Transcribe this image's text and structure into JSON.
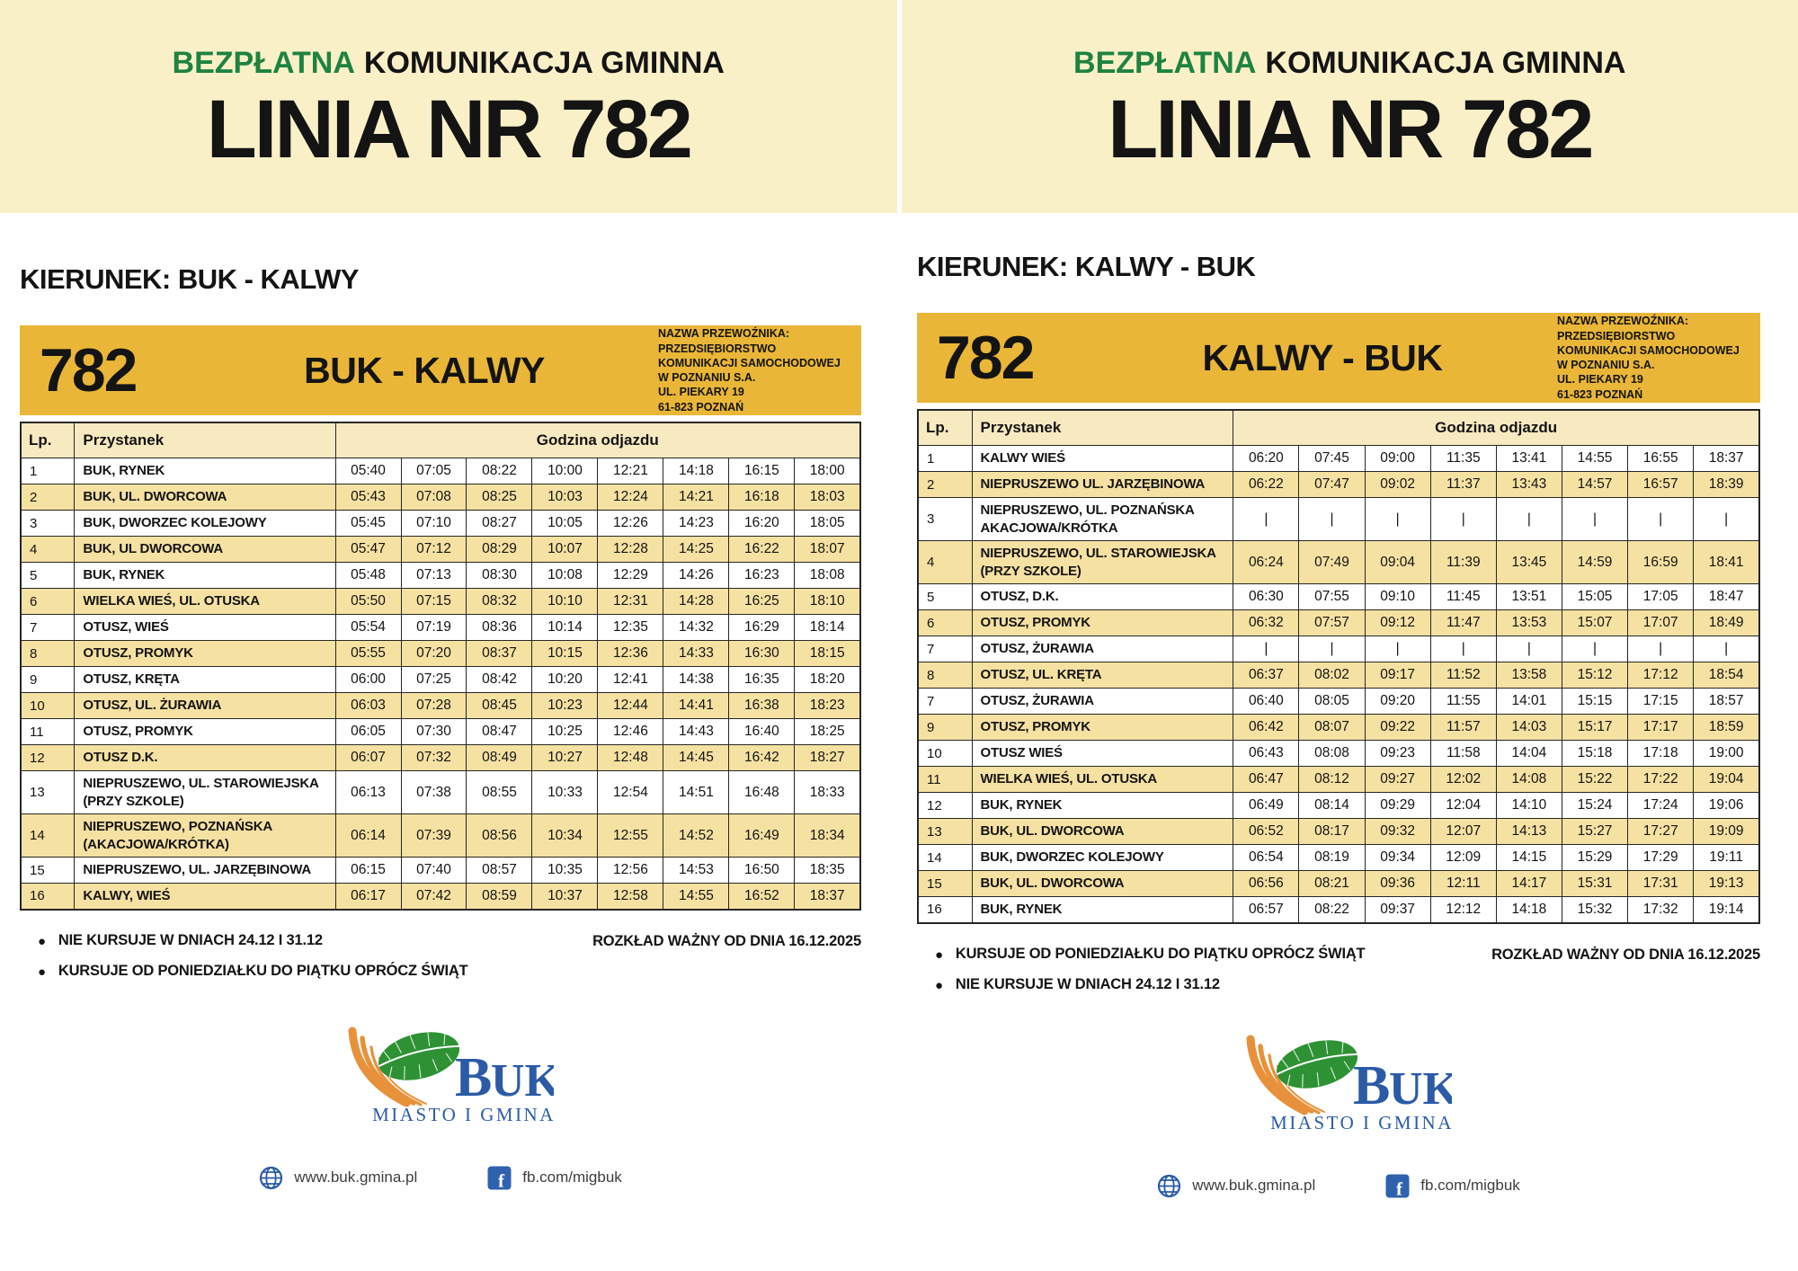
{
  "banner": {
    "free_label": "BEZPŁATNA",
    "rest_label": "KOMUNIKACJA GMINNA",
    "line_title": "LINIA NR 782"
  },
  "carrier": {
    "lines": [
      "NAZWA PRZEWOŹNIKA:",
      "PRZEDSIĘBIORSTWO",
      "KOMUNIKACJI SAMOCHODOWEJ",
      "W POZNANIU S.A.",
      "UL. PIEKARY 19",
      "61-823 POZNAŃ"
    ]
  },
  "table_headers": {
    "lp": "Lp.",
    "stop": "Przystanek",
    "times": "Godzina odjazdu"
  },
  "panels": [
    {
      "direction_heading": "KIERUNEK: BUK - KALWY",
      "line_number": "782",
      "route_title": "BUK - KALWY",
      "notes": [
        "NIE KURSUJE W DNIACH 24.12 I 31.12",
        "KURSUJE OD PONIEDZIAŁKU DO PIĄTKU OPRÓCZ ŚWIĄT"
      ],
      "validity": "ROZKŁAD WAŻNY OD DNIA 16.12.2025",
      "table": {
        "rows": [
          {
            "lp": "1",
            "stop": "BUK, RYNEK",
            "times": [
              "05:40",
              "07:05",
              "08:22",
              "10:00",
              "12:21",
              "14:18",
              "16:15",
              "18:00"
            ]
          },
          {
            "lp": "2",
            "stop": "BUK, UL. DWORCOWA",
            "times": [
              "05:43",
              "07:08",
              "08:25",
              "10:03",
              "12:24",
              "14:21",
              "16:18",
              "18:03"
            ]
          },
          {
            "lp": "3",
            "stop": "BUK, DWORZEC KOLEJOWY",
            "times": [
              "05:45",
              "07:10",
              "08:27",
              "10:05",
              "12:26",
              "14:23",
              "16:20",
              "18:05"
            ]
          },
          {
            "lp": "4",
            "stop": "BUK, UL DWORCOWA",
            "times": [
              "05:47",
              "07:12",
              "08:29",
              "10:07",
              "12:28",
              "14:25",
              "16:22",
              "18:07"
            ]
          },
          {
            "lp": "5",
            "stop": "BUK, RYNEK",
            "times": [
              "05:48",
              "07:13",
              "08:30",
              "10:08",
              "12:29",
              "14:26",
              "16:23",
              "18:08"
            ]
          },
          {
            "lp": "6",
            "stop": "WIELKA WIEŚ, UL. OTUSKA",
            "times": [
              "05:50",
              "07:15",
              "08:32",
              "10:10",
              "12:31",
              "14:28",
              "16:25",
              "18:10"
            ]
          },
          {
            "lp": "7",
            "stop": "OTUSZ, WIEŚ",
            "times": [
              "05:54",
              "07:19",
              "08:36",
              "10:14",
              "12:35",
              "14:32",
              "16:29",
              "18:14"
            ]
          },
          {
            "lp": "8",
            "stop": "OTUSZ, PROMYK",
            "times": [
              "05:55",
              "07:20",
              "08:37",
              "10:15",
              "12:36",
              "14:33",
              "16:30",
              "18:15"
            ]
          },
          {
            "lp": "9",
            "stop": "OTUSZ, KRĘTA",
            "times": [
              "06:00",
              "07:25",
              "08:42",
              "10:20",
              "12:41",
              "14:38",
              "16:35",
              "18:20"
            ]
          },
          {
            "lp": "10",
            "stop": "OTUSZ, UL. ŻURAWIA",
            "times": [
              "06:03",
              "07:28",
              "08:45",
              "10:23",
              "12:44",
              "14:41",
              "16:38",
              "18:23"
            ]
          },
          {
            "lp": "11",
            "stop": "OTUSZ, PROMYK",
            "times": [
              "06:05",
              "07:30",
              "08:47",
              "10:25",
              "12:46",
              "14:43",
              "16:40",
              "18:25"
            ]
          },
          {
            "lp": "12",
            "stop": "OTUSZ D.K.",
            "times": [
              "06:07",
              "07:32",
              "08:49",
              "10:27",
              "12:48",
              "14:45",
              "16:42",
              "18:27"
            ]
          },
          {
            "lp": "13",
            "stop": "NIEPRUSZEWO, UL. STAROWIEJSKA\n(PRZY SZKOLE)",
            "times": [
              "06:13",
              "07:38",
              "08:55",
              "10:33",
              "12:54",
              "14:51",
              "16:48",
              "18:33"
            ]
          },
          {
            "lp": "14",
            "stop": "NIEPRUSZEWO, POZNAŃSKA\n(AKACJOWA/KRÓTKA)",
            "times": [
              "06:14",
              "07:39",
              "08:56",
              "10:34",
              "12:55",
              "14:52",
              "16:49",
              "18:34"
            ]
          },
          {
            "lp": "15",
            "stop": "NIEPRUSZEWO, UL. JARZĘBINOWA",
            "times": [
              "06:15",
              "07:40",
              "08:57",
              "10:35",
              "12:56",
              "14:53",
              "16:50",
              "18:35"
            ]
          },
          {
            "lp": "16",
            "stop": "KALWY, WIEŚ",
            "times": [
              "06:17",
              "07:42",
              "08:59",
              "10:37",
              "12:58",
              "14:55",
              "16:52",
              "18:37"
            ]
          }
        ]
      }
    },
    {
      "direction_heading": "KIERUNEK: KALWY - BUK",
      "line_number": "782",
      "route_title": "KALWY - BUK",
      "notes": [
        "KURSUJE OD PONIEDZIAŁKU DO PIĄTKU OPRÓCZ ŚWIĄT",
        "NIE KURSUJE W DNIACH 24.12 I 31.12"
      ],
      "validity": "ROZKŁAD WAŻNY OD DNIA 16.12.2025",
      "table": {
        "rows": [
          {
            "lp": "1",
            "stop": "KALWY WIEŚ",
            "times": [
              "06:20",
              "07:45",
              "09:00",
              "11:35",
              "13:41",
              "14:55",
              "16:55",
              "18:37"
            ]
          },
          {
            "lp": "2",
            "stop": "NIEPRUSZEWO UL. JARZĘBINOWA",
            "times": [
              "06:22",
              "07:47",
              "09:02",
              "11:37",
              "13:43",
              "14:57",
              "16:57",
              "18:39"
            ]
          },
          {
            "lp": "3",
            "stop": "NIEPRUSZEWO, UL. POZNAŃSKA\nAKACJOWA/KRÓTKA",
            "times": [
              "|",
              "|",
              "|",
              "|",
              "|",
              "|",
              "|",
              "|"
            ]
          },
          {
            "lp": "4",
            "stop": "NIEPRUSZEWO, UL. STAROWIEJSKA\n(PRZY SZKOLE)",
            "times": [
              "06:24",
              "07:49",
              "09:04",
              "11:39",
              "13:45",
              "14:59",
              "16:59",
              "18:41"
            ]
          },
          {
            "lp": "5",
            "stop": "OTUSZ, D.K.",
            "times": [
              "06:30",
              "07:55",
              "09:10",
              "11:45",
              "13:51",
              "15:05",
              "17:05",
              "18:47"
            ]
          },
          {
            "lp": "6",
            "stop": "OTUSZ, PROMYK",
            "times": [
              "06:32",
              "07:57",
              "09:12",
              "11:47",
              "13:53",
              "15:07",
              "17:07",
              "18:49"
            ]
          },
          {
            "lp": "7",
            "stop": "OTUSZ, ŻURAWIA",
            "times": [
              "|",
              "|",
              "|",
              "|",
              "|",
              "|",
              "|",
              "|"
            ]
          },
          {
            "lp": "8",
            "stop": "OTUSZ, UL. KRĘTA",
            "times": [
              "06:37",
              "08:02",
              "09:17",
              "11:52",
              "13:58",
              "15:12",
              "17:12",
              "18:54"
            ]
          },
          {
            "lp": "7",
            "stop": "OTUSZ, ŻURAWIA",
            "times": [
              "06:40",
              "08:05",
              "09:20",
              "11:55",
              "14:01",
              "15:15",
              "17:15",
              "18:57"
            ]
          },
          {
            "lp": "9",
            "stop": "OTUSZ, PROMYK",
            "times": [
              "06:42",
              "08:07",
              "09:22",
              "11:57",
              "14:03",
              "15:17",
              "17:17",
              "18:59"
            ]
          },
          {
            "lp": "10",
            "stop": "OTUSZ WIEŚ",
            "times": [
              "06:43",
              "08:08",
              "09:23",
              "11:58",
              "14:04",
              "15:18",
              "17:18",
              "19:00"
            ]
          },
          {
            "lp": "11",
            "stop": "WIELKA WIEŚ, UL. OTUSKA",
            "times": [
              "06:47",
              "08:12",
              "09:27",
              "12:02",
              "14:08",
              "15:22",
              "17:22",
              "19:04"
            ]
          },
          {
            "lp": "12",
            "stop": "BUK, RYNEK",
            "times": [
              "06:49",
              "08:14",
              "09:29",
              "12:04",
              "14:10",
              "15:24",
              "17:24",
              "19:06"
            ]
          },
          {
            "lp": "13",
            "stop": "BUK, UL. DWORCOWA",
            "times": [
              "06:52",
              "08:17",
              "09:32",
              "12:07",
              "14:13",
              "15:27",
              "17:27",
              "19:09"
            ]
          },
          {
            "lp": "14",
            "stop": "BUK, DWORZEC KOLEJOWY",
            "times": [
              "06:54",
              "08:19",
              "09:34",
              "12:09",
              "14:15",
              "15:29",
              "17:29",
              "19:11"
            ]
          },
          {
            "lp": "15",
            "stop": "BUK, UL. DWORCOWA",
            "times": [
              "06:56",
              "08:21",
              "09:36",
              "12:11",
              "14:17",
              "15:31",
              "17:31",
              "19:13"
            ]
          },
          {
            "lp": "16",
            "stop": "BUK, RYNEK",
            "times": [
              "06:57",
              "08:22",
              "09:37",
              "12:12",
              "14:18",
              "15:32",
              "17:32",
              "19:14"
            ]
          }
        ]
      }
    }
  ],
  "footer": {
    "logo_main": "BUK",
    "logo_sub": "MIASTO I GMINA",
    "website": "www.buk.gmina.pl",
    "facebook": "fb.com/migbuk"
  },
  "colors": {
    "banner_cream": "#FAF0C8",
    "band_gold": "#E9B637",
    "row_stripe": "#F5E1A2",
    "header_row": "#F8EAC0",
    "accent_green": "#1E8340",
    "logo_blue": "#2B5BA7",
    "facebook_blue": "#2F61AE"
  }
}
